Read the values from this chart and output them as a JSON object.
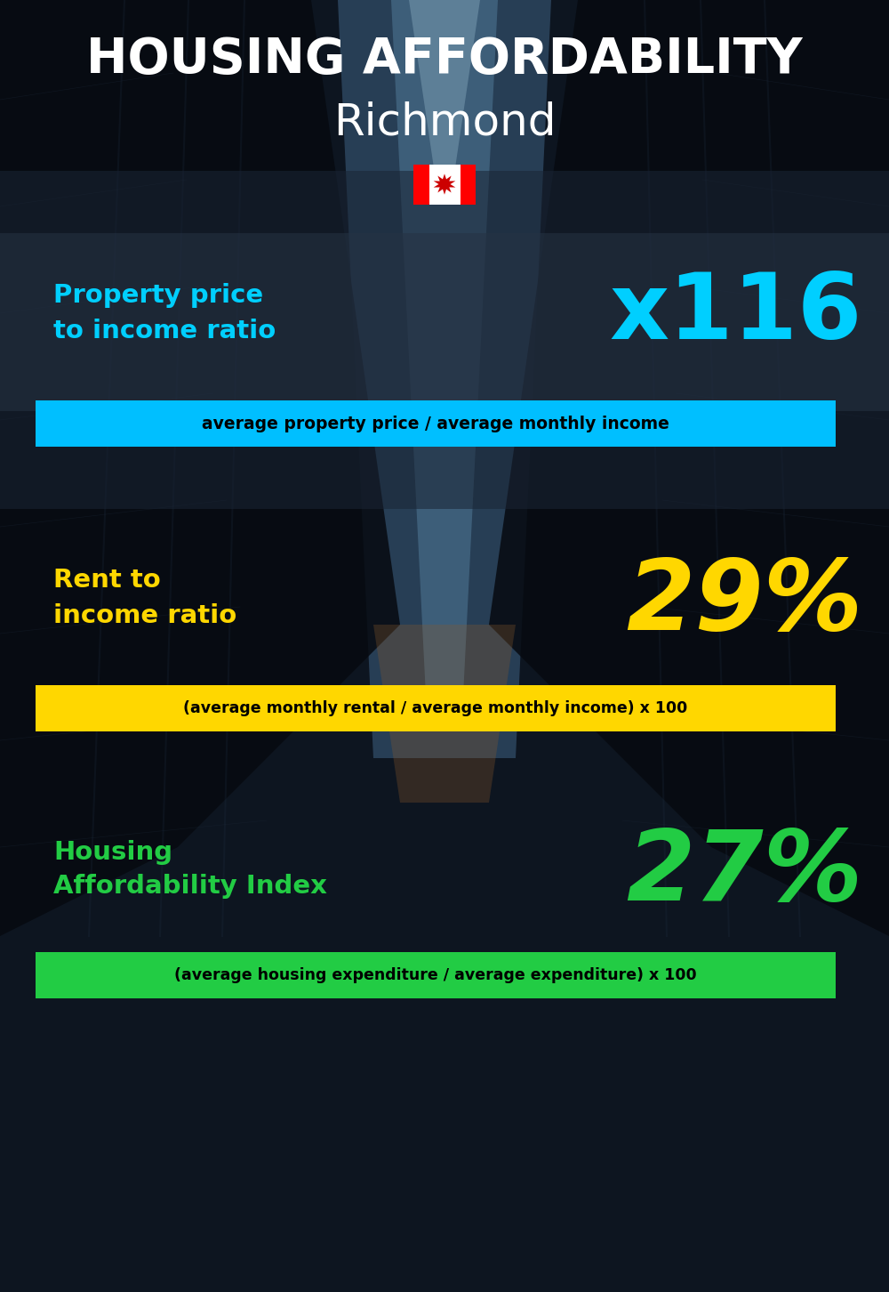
{
  "title_line1": "HOUSING AFFORDABILITY",
  "title_line2": "Richmond",
  "section1_label": "Property price\nto income ratio",
  "section1_value": "x116",
  "section1_sublabel": "average property price / average monthly income",
  "section1_label_color": "#00cfff",
  "section1_value_color": "#00cfff",
  "section1_bg_color": "#00bfff",
  "section1_sub_text_color": "#000000",
  "section2_label": "Rent to\nincome ratio",
  "section2_value": "29%",
  "section2_sublabel": "(average monthly rental / average monthly income) x 100",
  "section2_label_color": "#FFD700",
  "section2_value_color": "#FFD700",
  "section2_bg_color": "#FFD700",
  "section2_sub_text_color": "#000000",
  "section3_label": "Housing\nAffordability Index",
  "section3_value": "27%",
  "section3_sublabel": "(average housing expenditure / average expenditure) x 100",
  "section3_label_color": "#22CC44",
  "section3_value_color": "#22CC44",
  "section3_bg_color": "#22CC44",
  "section3_sub_text_color": "#000000",
  "title_color": "#FFFFFF",
  "title2_color": "#FFFFFF"
}
